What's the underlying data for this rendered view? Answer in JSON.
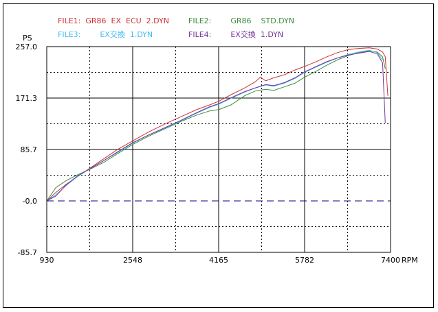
{
  "legend": {
    "file1": {
      "label": "FILE1:",
      "name": "GR86  EX  ECU  2.DYN",
      "color": "#cc3333"
    },
    "file2": {
      "label": "FILE2:",
      "name": "GR86    STD.DYN",
      "color": "#3a8a3a"
    },
    "file3": {
      "label": "FILE3:",
      "name": "EX交換  1.DYN",
      "color": "#44bbee"
    },
    "file4": {
      "label": "FILE4:",
      "name": "EX交換  1.DYN",
      "color": "#773399"
    }
  },
  "chart_data": {
    "type": "line",
    "ylabel": "PS",
    "xlabel": "RPM",
    "xlim": [
      930,
      7400
    ],
    "ylim": [
      -85.7,
      257.0
    ],
    "x_ticks": [
      "930",
      "2548",
      "4165",
      "5782",
      "7400"
    ],
    "y_ticks": [
      "257.0",
      "171.3",
      "85.7",
      "-0.0",
      "-85.7"
    ],
    "grid": true,
    "zero_line_color": "#000080",
    "series": [
      {
        "name": "FILE1:  GR86  EX  ECU  2.DYN",
        "color": "#cc3333",
        "x": [
          930,
          1100,
          1300,
          1500,
          1750,
          2000,
          2250,
          2548,
          2850,
          3150,
          3450,
          3750,
          4000,
          4165,
          4400,
          4650,
          4850,
          4950,
          5050,
          5200,
          5400,
          5600,
          5782,
          6000,
          6200,
          6400,
          6600,
          6800,
          7000,
          7150,
          7250,
          7300,
          7350
        ],
        "y": [
          0,
          14,
          28,
          40,
          55,
          70,
          85,
          100,
          115,
          128,
          140,
          152,
          160,
          166,
          177,
          188,
          198,
          206,
          200,
          205,
          210,
          218,
          224,
          232,
          240,
          247,
          252,
          254,
          255,
          253,
          248,
          240,
          175
        ]
      },
      {
        "name": "FILE2:  GR86    STD.DYN",
        "color": "#3a8a3a",
        "x": [
          930,
          1100,
          1300,
          1500,
          1750,
          2000,
          2250,
          2548,
          2850,
          3150,
          3450,
          3750,
          4000,
          4165,
          4400,
          4650,
          4850,
          5050,
          5200,
          5400,
          5600,
          5782,
          6000,
          6200,
          6400,
          6600,
          6800,
          7000,
          7150,
          7250,
          7300
        ],
        "y": [
          0,
          22,
          34,
          43,
          53,
          64,
          78,
          94,
          108,
          120,
          132,
          143,
          150,
          152,
          160,
          175,
          183,
          186,
          184,
          190,
          196,
          206,
          216,
          226,
          235,
          242,
          247,
          250,
          248,
          240,
          220
        ]
      },
      {
        "name": "FILE3:  EX交換  1.DYN",
        "color": "#44bbee",
        "x": [
          930,
          1100,
          1300,
          1500,
          1750,
          2000,
          2250,
          2548,
          2850,
          3150,
          3450,
          3750,
          4000,
          4165,
          4400,
          4650,
          4850,
          5050,
          5200,
          5400,
          5600,
          5782,
          6000,
          6200,
          6400,
          6600,
          6800,
          7000,
          7150,
          7250
        ],
        "y": [
          0,
          10,
          26,
          40,
          54,
          67,
          80,
          96,
          110,
          121,
          133,
          146,
          156,
          161,
          171,
          181,
          188,
          193,
          191,
          196,
          204,
          214,
          223,
          231,
          238,
          244,
          248,
          251,
          247,
          235
        ]
      },
      {
        "name": "FILE4:  EX交換  1.DYN",
        "color": "#773399",
        "x": [
          930,
          1100,
          1300,
          1500,
          1750,
          2000,
          2250,
          2548,
          2850,
          3150,
          3450,
          3750,
          4000,
          4165,
          4400,
          4650,
          4850,
          5050,
          5200,
          5400,
          5600,
          5782,
          6000,
          6200,
          6400,
          6600,
          6800,
          7000,
          7150,
          7250,
          7300
        ],
        "y": [
          0,
          8,
          27,
          41,
          54,
          67,
          81,
          97,
          110,
          122,
          134,
          147,
          157,
          162,
          172,
          182,
          188,
          194,
          192,
          197,
          205,
          215,
          224,
          232,
          238,
          243,
          246,
          249,
          245,
          230,
          130
        ]
      }
    ]
  }
}
